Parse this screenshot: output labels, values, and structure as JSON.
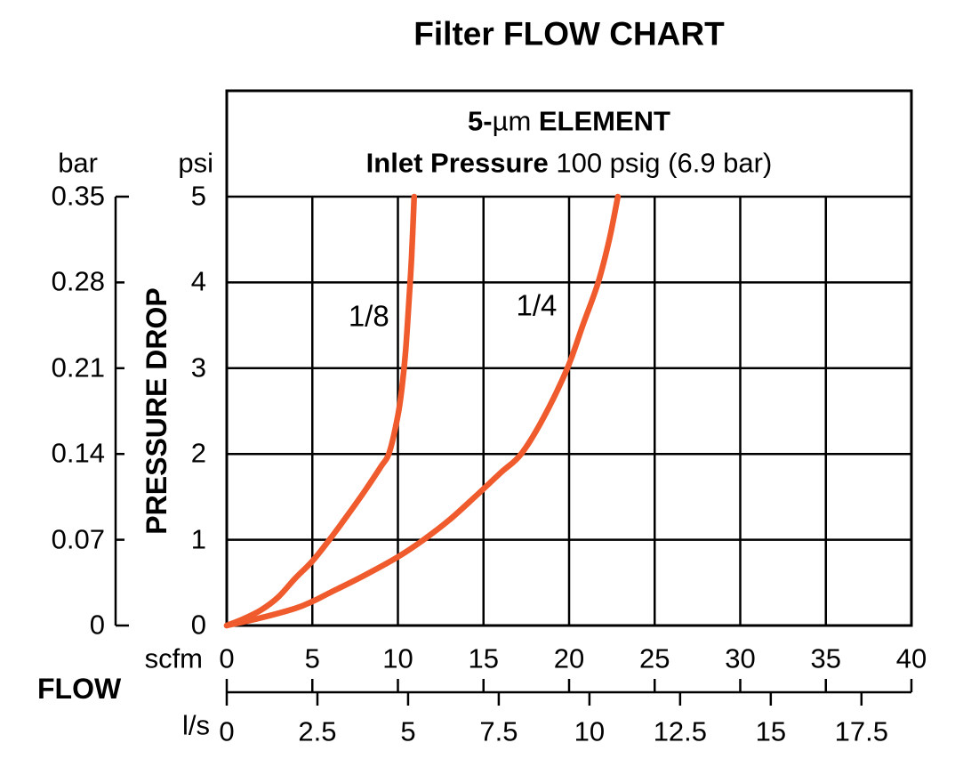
{
  "title": "Filter FLOW CHART",
  "colors": {
    "curve": "#EF5B2D",
    "line": "#000000",
    "text": "#000000",
    "background": "#FFFFFF"
  },
  "chart_data": {
    "type": "line",
    "title": "Filter FLOW CHART",
    "subtitle1": {
      "prefix": "5-",
      "mu": "µm",
      "suffix": " ELEMENT"
    },
    "subtitle2": {
      "bold": "Inlet Pressure",
      "rest": " 100 psig (6.9 bar)"
    },
    "grid": true,
    "x_axis": {
      "label": "FLOW",
      "scfm": {
        "unit": "scfm",
        "ticks": [
          "0",
          "5",
          "10",
          "15",
          "20",
          "25",
          "30",
          "35",
          "40"
        ],
        "range": [
          0,
          40
        ]
      },
      "ls": {
        "unit": "l/s",
        "ticks": [
          "0",
          "2.5",
          "5",
          "7.5",
          "10",
          "12.5",
          "15",
          "17.5"
        ],
        "scfm_per_ls": 2.1189
      }
    },
    "y_axis": {
      "label": "PRESSURE DROP",
      "psi": {
        "unit": "psi",
        "ticks_top_to_bottom": [
          "5",
          "4",
          "3",
          "2",
          "1",
          "0"
        ],
        "range": [
          0,
          5
        ]
      },
      "bar": {
        "unit": "bar",
        "ticks_top_to_bottom": [
          "0.35",
          "0.28",
          "0.21",
          "0.14",
          "0.07",
          "0"
        ]
      }
    },
    "series": [
      {
        "name": "1/8",
        "label_pos": {
          "scfm": 8.3,
          "psi": 3.6
        },
        "points_scfm_psi": [
          [
            0,
            0
          ],
          [
            1,
            0.08
          ],
          [
            2,
            0.18
          ],
          [
            3,
            0.33
          ],
          [
            4,
            0.55
          ],
          [
            5,
            0.75
          ],
          [
            6,
            1.0
          ],
          [
            7,
            1.27
          ],
          [
            8,
            1.55
          ],
          [
            9,
            1.85
          ],
          [
            9.5,
            2.02
          ],
          [
            10,
            2.45
          ],
          [
            10.25,
            2.8
          ],
          [
            10.45,
            3.2
          ],
          [
            10.65,
            3.8
          ],
          [
            10.8,
            4.3
          ],
          [
            10.95,
            5.0
          ]
        ]
      },
      {
        "name": "1/4",
        "label_pos": {
          "scfm": 18.1,
          "psi": 3.72
        },
        "points_scfm_psi": [
          [
            0,
            0
          ],
          [
            2,
            0.09
          ],
          [
            4,
            0.2
          ],
          [
            5,
            0.28
          ],
          [
            6,
            0.38
          ],
          [
            8,
            0.58
          ],
          [
            10,
            0.8
          ],
          [
            11.5,
            1.0
          ],
          [
            13,
            1.23
          ],
          [
            14.5,
            1.5
          ],
          [
            16,
            1.78
          ],
          [
            17.2,
            2.0
          ],
          [
            18.5,
            2.42
          ],
          [
            19.9,
            3.0
          ],
          [
            20.8,
            3.5
          ],
          [
            21.7,
            4.0
          ],
          [
            22.35,
            4.5
          ],
          [
            22.85,
            5.0
          ]
        ]
      }
    ]
  }
}
